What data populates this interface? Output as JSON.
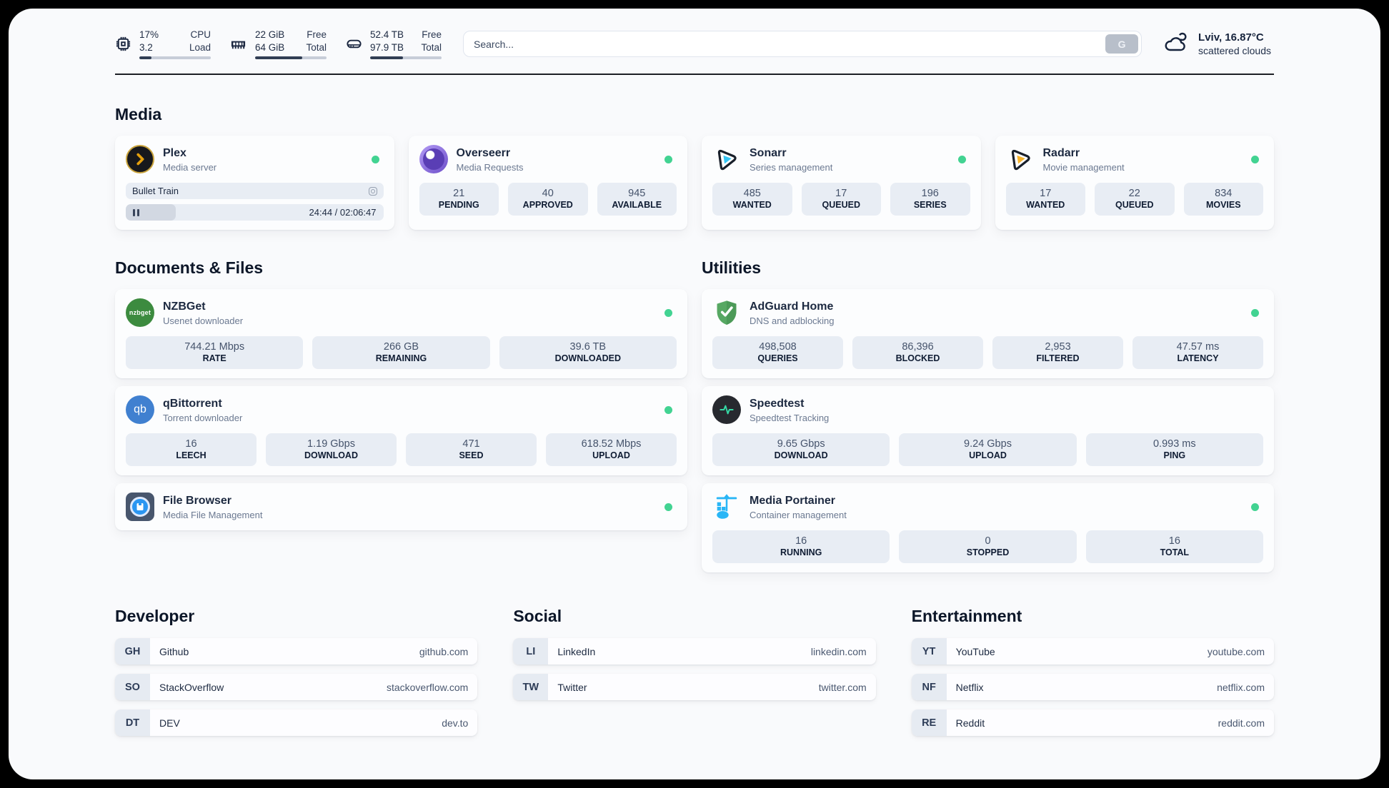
{
  "colors": {
    "status_green": "#42d392",
    "progress_dark": "#313e54",
    "accent_text": "#1c2940"
  },
  "header": {
    "cpu": {
      "value_top": "17%",
      "value_bottom": "3.2",
      "label_top": "CPU",
      "label_bottom": "Load",
      "fill_percent": 17
    },
    "ram": {
      "value_top": "22 GiB",
      "value_bottom": "64 GiB",
      "label_top": "Free",
      "label_bottom": "Total",
      "fill_percent": 66
    },
    "disk": {
      "value_top": "52.4 TB",
      "value_bottom": "97.9 TB",
      "label_top": "Free",
      "label_bottom": "Total",
      "fill_percent": 46
    },
    "search": {
      "placeholder": "Search...",
      "button_label": "G"
    },
    "weather": {
      "location_temp": "Lviv, 16.87°C",
      "condition": "scattered clouds"
    }
  },
  "media": {
    "title": "Media",
    "plex": {
      "name": "Plex",
      "subtitle": "Media server",
      "now_playing": "Bullet Train",
      "time": "24:44 / 02:06:47",
      "progress_percent": 19.5
    },
    "overseerr": {
      "name": "Overseerr",
      "subtitle": "Media Requests",
      "stats": [
        {
          "value": "21",
          "label": "PENDING"
        },
        {
          "value": "40",
          "label": "APPROVED"
        },
        {
          "value": "945",
          "label": "AVAILABLE"
        }
      ]
    },
    "sonarr": {
      "name": "Sonarr",
      "subtitle": "Series management",
      "stats": [
        {
          "value": "485",
          "label": "WANTED"
        },
        {
          "value": "17",
          "label": "QUEUED"
        },
        {
          "value": "196",
          "label": "SERIES"
        }
      ]
    },
    "radarr": {
      "name": "Radarr",
      "subtitle": "Movie management",
      "stats": [
        {
          "value": "17",
          "label": "WANTED"
        },
        {
          "value": "22",
          "label": "QUEUED"
        },
        {
          "value": "834",
          "label": "MOVIES"
        }
      ]
    }
  },
  "documents": {
    "title": "Documents & Files",
    "nzbget": {
      "name": "NZBGet",
      "subtitle": "Usenet downloader",
      "icon_text": "nzbget",
      "stats": [
        {
          "value": "744.21 Mbps",
          "label": "RATE"
        },
        {
          "value": "266 GB",
          "label": "REMAINING"
        },
        {
          "value": "39.6 TB",
          "label": "DOWNLOADED"
        }
      ]
    },
    "qbittorrent": {
      "name": "qBittorrent",
      "subtitle": "Torrent downloader",
      "icon_text": "qb",
      "stats": [
        {
          "value": "16",
          "label": "LEECH"
        },
        {
          "value": "1.19 Gbps",
          "label": "DOWNLOAD"
        },
        {
          "value": "471",
          "label": "SEED"
        },
        {
          "value": "618.52 Mbps",
          "label": "UPLOAD"
        }
      ]
    },
    "filebrowser": {
      "name": "File Browser",
      "subtitle": "Media File Management"
    }
  },
  "utilities": {
    "title": "Utilities",
    "adguard": {
      "name": "AdGuard Home",
      "subtitle": "DNS and adblocking",
      "stats": [
        {
          "value": "498,508",
          "label": "QUERIES"
        },
        {
          "value": "86,396",
          "label": "BLOCKED"
        },
        {
          "value": "2,953",
          "label": "FILTERED"
        },
        {
          "value": "47.57 ms",
          "label": "LATENCY"
        }
      ]
    },
    "speedtest": {
      "name": "Speedtest",
      "subtitle": "Speedtest Tracking",
      "stats": [
        {
          "value": "9.65 Gbps",
          "label": "DOWNLOAD"
        },
        {
          "value": "9.24 Gbps",
          "label": "UPLOAD"
        },
        {
          "value": "0.993 ms",
          "label": "PING"
        }
      ]
    },
    "portainer": {
      "name": "Media Portainer",
      "subtitle": "Container management",
      "stats": [
        {
          "value": "16",
          "label": "RUNNING"
        },
        {
          "value": "0",
          "label": "STOPPED"
        },
        {
          "value": "16",
          "label": "TOTAL"
        }
      ]
    }
  },
  "links": {
    "developer": {
      "title": "Developer",
      "items": [
        {
          "tag": "GH",
          "name": "Github",
          "url": "github.com"
        },
        {
          "tag": "SO",
          "name": "StackOverflow",
          "url": "stackoverflow.com"
        },
        {
          "tag": "DT",
          "name": "DEV",
          "url": "dev.to"
        }
      ]
    },
    "social": {
      "title": "Social",
      "items": [
        {
          "tag": "LI",
          "name": "LinkedIn",
          "url": "linkedin.com"
        },
        {
          "tag": "TW",
          "name": "Twitter",
          "url": "twitter.com"
        }
      ]
    },
    "entertainment": {
      "title": "Entertainment",
      "items": [
        {
          "tag": "YT",
          "name": "YouTube",
          "url": "youtube.com"
        },
        {
          "tag": "NF",
          "name": "Netflix",
          "url": "netflix.com"
        },
        {
          "tag": "RE",
          "name": "Reddit",
          "url": "reddit.com"
        }
      ]
    }
  }
}
